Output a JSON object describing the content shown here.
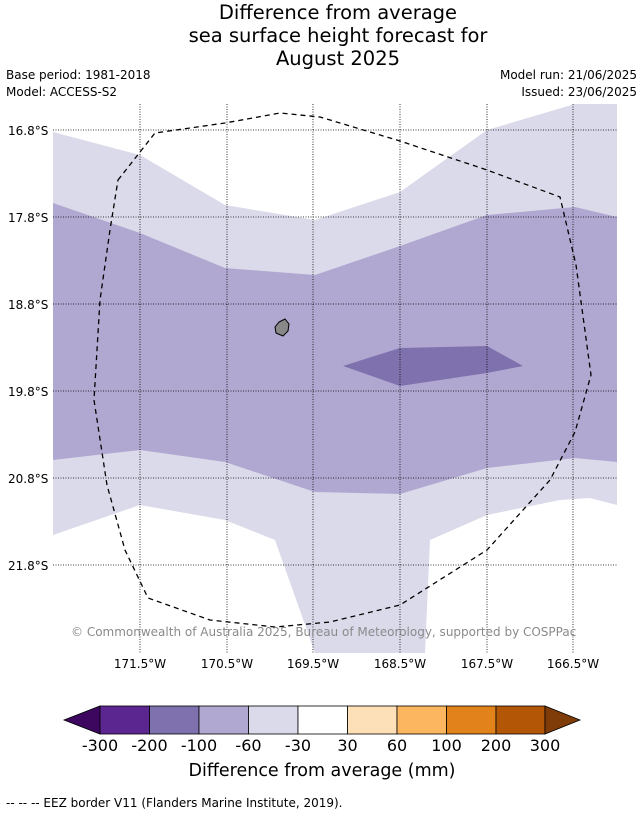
{
  "title": {
    "line1": "Difference from average",
    "line2": "sea surface height forecast for",
    "line3": "August 2025"
  },
  "meta": {
    "base_period": "Base period: 1981-2018",
    "model": "Model: ACCESS-S2",
    "model_run": "Model run: 21/06/2025",
    "issued": "Issued: 23/06/2025"
  },
  "map": {
    "longitude_ticks": [
      "171.5°W",
      "170.5°W",
      "169.5°W",
      "168.5°W",
      "167.5°W",
      "166.5°W"
    ],
    "latitude_ticks": [
      "16.8°S",
      "17.8°S",
      "18.8°S",
      "19.8°S",
      "20.8°S",
      "21.8°S"
    ],
    "gridlines": true,
    "eez_border_style": "dashed",
    "credit": "© Commonwealth of Australia 2025, Bureau of Meteorology, supported by COSPPac"
  },
  "colorbar": {
    "label": "Difference from average (mm)",
    "tick_labels": [
      "-300",
      "-200",
      "-100",
      "-60",
      "-30",
      "30",
      "60",
      "100",
      "200",
      "300"
    ],
    "colors": [
      "#3d0760",
      "#5c2690",
      "#7f71ad",
      "#b0a8d1",
      "#dbdaea",
      "#ffffff",
      "#fde0b8",
      "#fbb65f",
      "#e1821b",
      "#b35606",
      "#7f3b08"
    ]
  },
  "footnote": "--  --  -- EEZ border V11 (Flanders Marine Institute, 2019)."
}
